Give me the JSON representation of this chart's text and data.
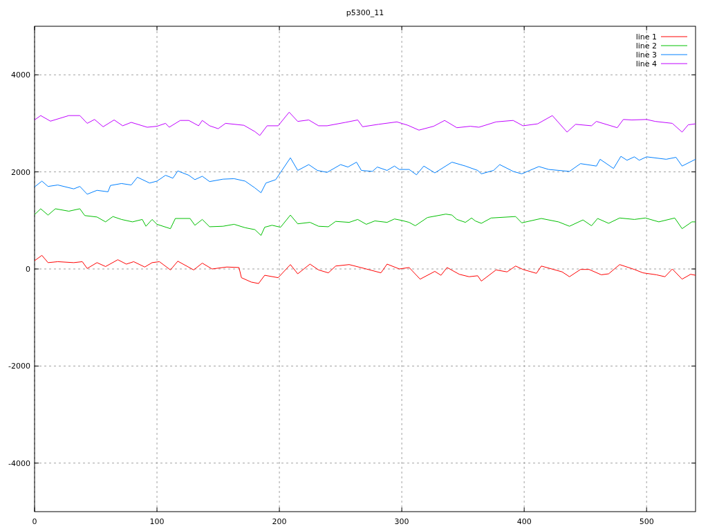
{
  "chart_data": {
    "type": "line",
    "title": "p5300_11",
    "xlim": [
      0,
      540
    ],
    "ylim": [
      -5000,
      5000
    ],
    "xticks": [
      0,
      100,
      200,
      300,
      400,
      500
    ],
    "yticks": [
      -4000,
      -2000,
      0,
      2000,
      4000
    ],
    "grid": true,
    "legend": "top right",
    "line_style": "solid",
    "marker": "none",
    "series": [
      {
        "name": "line 1",
        "color": "#ff0000",
        "x": [
          0,
          6,
          11,
          19,
          32,
          39,
          43,
          51,
          58,
          68,
          75,
          81,
          90,
          96,
          102,
          111,
          117,
          130,
          137,
          145,
          157,
          167,
          169,
          177,
          183,
          188,
          199,
          209,
          215,
          225,
          232,
          240,
          246,
          257,
          271,
          283,
          288,
          298,
          306,
          315,
          327,
          332,
          337,
          347,
          355,
          362,
          365,
          377,
          386,
          393,
          399,
          410,
          414,
          431,
          437,
          446,
          453,
          463,
          469,
          478,
          490,
          497,
          508,
          515,
          521,
          529,
          536,
          540
        ],
        "values": [
          170,
          280,
          130,
          150,
          130,
          150,
          10,
          130,
          50,
          190,
          100,
          150,
          40,
          130,
          150,
          -20,
          160,
          -20,
          120,
          0,
          40,
          30,
          -180,
          -270,
          -300,
          -130,
          -180,
          90,
          -100,
          100,
          -20,
          -80,
          60,
          90,
          0,
          -80,
          100,
          0,
          30,
          -210,
          -50,
          -130,
          30,
          -110,
          -160,
          -140,
          -250,
          -20,
          -60,
          60,
          -10,
          -90,
          60,
          -60,
          -160,
          -10,
          -10,
          -120,
          -100,
          90,
          -10,
          -80,
          -120,
          -160,
          0,
          -210,
          -110,
          -130
        ]
      },
      {
        "name": "line 2",
        "color": "#00c000",
        "x": [
          0,
          5,
          11,
          17,
          28,
          37,
          41,
          51,
          58,
          64,
          71,
          80,
          88,
          91,
          96,
          100,
          111,
          115,
          127,
          131,
          137,
          143,
          154,
          163,
          172,
          180,
          185,
          188,
          194,
          201,
          209,
          215,
          225,
          232,
          240,
          246,
          257,
          264,
          271,
          278,
          288,
          294,
          300,
          306,
          311,
          321,
          336,
          341,
          345,
          352,
          357,
          360,
          365,
          373,
          393,
          398,
          414,
          428,
          437,
          448,
          455,
          460,
          469,
          478,
          490,
          499,
          510,
          523,
          529,
          537,
          540
        ],
        "values": [
          1120,
          1240,
          1110,
          1240,
          1190,
          1240,
          1100,
          1070,
          970,
          1080,
          1020,
          970,
          1020,
          880,
          1020,
          920,
          830,
          1040,
          1040,
          900,
          1020,
          870,
          880,
          920,
          850,
          810,
          690,
          860,
          900,
          860,
          1110,
          930,
          960,
          880,
          870,
          980,
          960,
          1020,
          920,
          990,
          960,
          1030,
          1000,
          960,
          890,
          1060,
          1130,
          1110,
          1020,
          960,
          1050,
          990,
          940,
          1050,
          1080,
          950,
          1040,
          970,
          880,
          1010,
          890,
          1040,
          940,
          1050,
          1020,
          1050,
          970,
          1050,
          830,
          970,
          970
        ]
      },
      {
        "name": "line 3",
        "color": "#0080ff",
        "x": [
          0,
          6,
          11,
          19,
          32,
          37,
          43,
          51,
          60,
          62,
          71,
          79,
          84,
          94,
          100,
          107,
          113,
          117,
          126,
          131,
          137,
          143,
          154,
          163,
          172,
          180,
          185,
          189,
          197,
          201,
          209,
          215,
          224,
          231,
          239,
          250,
          256,
          263,
          267,
          276,
          280,
          288,
          294,
          298,
          306,
          312,
          318,
          327,
          341,
          352,
          362,
          365,
          375,
          380,
          391,
          398,
          412,
          420,
          437,
          446,
          459,
          462,
          473,
          479,
          484,
          490,
          494,
          500,
          516,
          524,
          529,
          540
        ],
        "values": [
          1690,
          1810,
          1700,
          1730,
          1650,
          1700,
          1540,
          1620,
          1590,
          1720,
          1760,
          1730,
          1890,
          1770,
          1810,
          1930,
          1870,
          2020,
          1930,
          1840,
          1910,
          1800,
          1850,
          1860,
          1810,
          1670,
          1570,
          1770,
          1840,
          1990,
          2290,
          2030,
          2150,
          2030,
          1990,
          2150,
          2100,
          2200,
          2030,
          2010,
          2100,
          2030,
          2120,
          2050,
          2050,
          1940,
          2120,
          1980,
          2200,
          2120,
          2030,
          1960,
          2030,
          2150,
          2010,
          1960,
          2110,
          2050,
          2010,
          2170,
          2120,
          2260,
          2070,
          2320,
          2240,
          2310,
          2240,
          2310,
          2260,
          2300,
          2120,
          2260
        ]
      },
      {
        "name": "line 4",
        "color": "#c000ff",
        "x": [
          0,
          5,
          13,
          28,
          37,
          43,
          49,
          56,
          65,
          72,
          79,
          92,
          100,
          107,
          110,
          119,
          126,
          134,
          137,
          143,
          150,
          156,
          171,
          180,
          184,
          190,
          199,
          208,
          215,
          224,
          232,
          239,
          254,
          264,
          268,
          281,
          296,
          305,
          314,
          326,
          335,
          345,
          356,
          363,
          377,
          391,
          399,
          411,
          423,
          435,
          442,
          455,
          459,
          476,
          481,
          488,
          500,
          507,
          521,
          529,
          534,
          540
        ],
        "values": [
          3070,
          3160,
          3045,
          3160,
          3160,
          3000,
          3080,
          2930,
          3070,
          2950,
          3020,
          2920,
          2940,
          3000,
          2920,
          3060,
          3060,
          2950,
          3060,
          2950,
          2890,
          3000,
          2960,
          2830,
          2750,
          2950,
          2950,
          3230,
          3040,
          3070,
          2950,
          2950,
          3020,
          3070,
          2930,
          2980,
          3030,
          2960,
          2860,
          2940,
          3060,
          2910,
          2940,
          2920,
          3030,
          3060,
          2950,
          2990,
          3160,
          2820,
          2980,
          2950,
          3040,
          2910,
          3080,
          3070,
          3080,
          3040,
          3000,
          2820,
          2970,
          2990
        ]
      }
    ]
  }
}
